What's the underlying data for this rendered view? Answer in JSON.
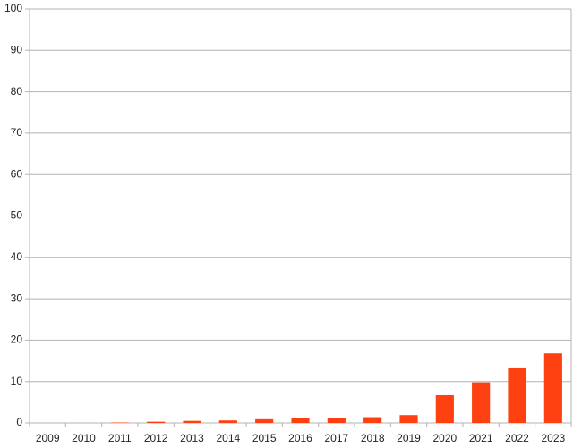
{
  "chart_data": {
    "type": "bar",
    "categories": [
      "2009",
      "2010",
      "2011",
      "2012",
      "2013",
      "2014",
      "2015",
      "2016",
      "2017",
      "2018",
      "2019",
      "2020",
      "2021",
      "2022",
      "2023"
    ],
    "values": [
      0,
      0,
      0.1,
      0.3,
      0.5,
      0.6,
      0.9,
      1.1,
      1.2,
      1.4,
      1.9,
      6.7,
      9.8,
      13.4,
      16.8
    ],
    "color": "#ff4010",
    "ylim": [
      0,
      100
    ],
    "yticks": [
      0,
      10,
      20,
      30,
      40,
      50,
      60,
      70,
      80,
      90,
      100
    ],
    "grid": true
  }
}
